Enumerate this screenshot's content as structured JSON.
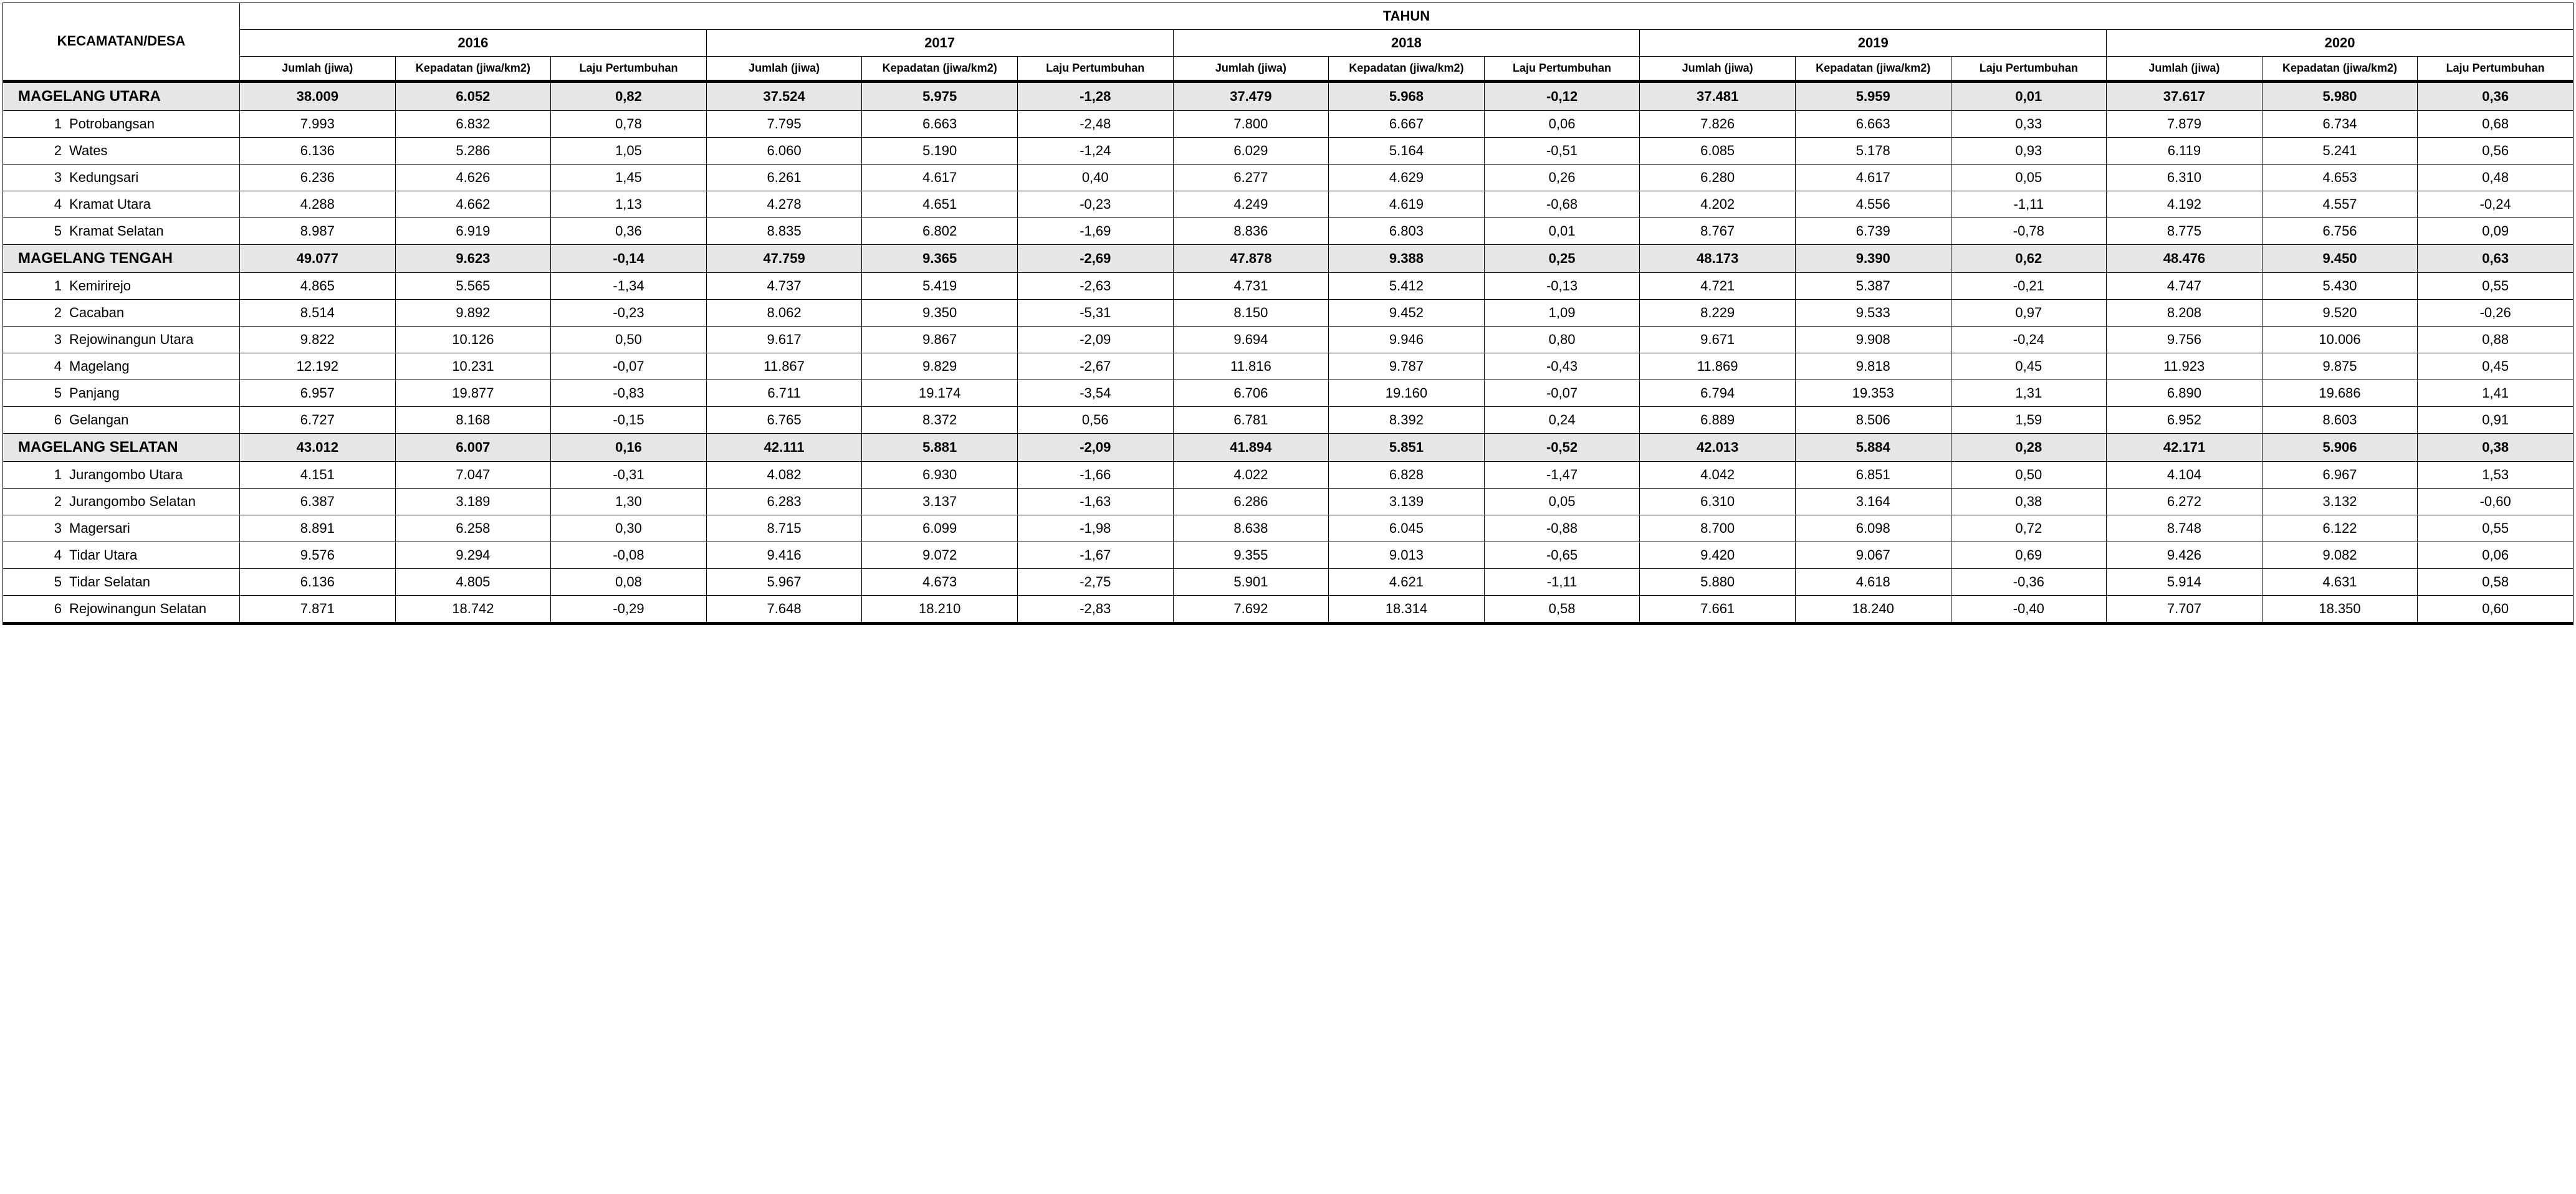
{
  "header": {
    "region_label": "KECAMATAN/DESA",
    "year_label": "TAHUN",
    "years": [
      "2016",
      "2017",
      "2018",
      "2019",
      "2020"
    ],
    "sub_columns": [
      {
        "k": "jumlah",
        "label": "Jumlah (jiwa)"
      },
      {
        "k": "kepadatan",
        "label": "Kepadatan (jiwa/km2)"
      },
      {
        "k": "laju",
        "label": "Laju Pertumbuhan"
      }
    ]
  },
  "groups": [
    {
      "name": "MAGELANG UTARA",
      "summary": {
        "2016": {
          "jumlah": "38.009",
          "kepadatan": "6.052",
          "laju": "0,82"
        },
        "2017": {
          "jumlah": "37.524",
          "kepadatan": "5.975",
          "laju": "-1,28"
        },
        "2018": {
          "jumlah": "37.479",
          "kepadatan": "5.968",
          "laju": "-0,12"
        },
        "2019": {
          "jumlah": "37.481",
          "kepadatan": "5.959",
          "laju": "0,01"
        },
        "2020": {
          "jumlah": "37.617",
          "kepadatan": "5.980",
          "laju": "0,36"
        }
      },
      "rows": [
        {
          "idx": "1",
          "name": "Potrobangsan",
          "2016": {
            "jumlah": "7.993",
            "kepadatan": "6.832",
            "laju": "0,78"
          },
          "2017": {
            "jumlah": "7.795",
            "kepadatan": "6.663",
            "laju": "-2,48"
          },
          "2018": {
            "jumlah": "7.800",
            "kepadatan": "6.667",
            "laju": "0,06"
          },
          "2019": {
            "jumlah": "7.826",
            "kepadatan": "6.663",
            "laju": "0,33"
          },
          "2020": {
            "jumlah": "7.879",
            "kepadatan": "6.734",
            "laju": "0,68"
          }
        },
        {
          "idx": "2",
          "name": "Wates",
          "2016": {
            "jumlah": "6.136",
            "kepadatan": "5.286",
            "laju": "1,05"
          },
          "2017": {
            "jumlah": "6.060",
            "kepadatan": "5.190",
            "laju": "-1,24"
          },
          "2018": {
            "jumlah": "6.029",
            "kepadatan": "5.164",
            "laju": "-0,51"
          },
          "2019": {
            "jumlah": "6.085",
            "kepadatan": "5.178",
            "laju": "0,93"
          },
          "2020": {
            "jumlah": "6.119",
            "kepadatan": "5.241",
            "laju": "0,56"
          }
        },
        {
          "idx": "3",
          "name": "Kedungsari",
          "2016": {
            "jumlah": "6.236",
            "kepadatan": "4.626",
            "laju": "1,45"
          },
          "2017": {
            "jumlah": "6.261",
            "kepadatan": "4.617",
            "laju": "0,40"
          },
          "2018": {
            "jumlah": "6.277",
            "kepadatan": "4.629",
            "laju": "0,26"
          },
          "2019": {
            "jumlah": "6.280",
            "kepadatan": "4.617",
            "laju": "0,05"
          },
          "2020": {
            "jumlah": "6.310",
            "kepadatan": "4.653",
            "laju": "0,48"
          }
        },
        {
          "idx": "4",
          "name": "Kramat Utara",
          "2016": {
            "jumlah": "4.288",
            "kepadatan": "4.662",
            "laju": "1,13"
          },
          "2017": {
            "jumlah": "4.278",
            "kepadatan": "4.651",
            "laju": "-0,23"
          },
          "2018": {
            "jumlah": "4.249",
            "kepadatan": "4.619",
            "laju": "-0,68"
          },
          "2019": {
            "jumlah": "4.202",
            "kepadatan": "4.556",
            "laju": "-1,11"
          },
          "2020": {
            "jumlah": "4.192",
            "kepadatan": "4.557",
            "laju": "-0,24"
          }
        },
        {
          "idx": "5",
          "name": "Kramat Selatan",
          "2016": {
            "jumlah": "8.987",
            "kepadatan": "6.919",
            "laju": "0,36"
          },
          "2017": {
            "jumlah": "8.835",
            "kepadatan": "6.802",
            "laju": "-1,69"
          },
          "2018": {
            "jumlah": "8.836",
            "kepadatan": "6.803",
            "laju": "0,01"
          },
          "2019": {
            "jumlah": "8.767",
            "kepadatan": "6.739",
            "laju": "-0,78"
          },
          "2020": {
            "jumlah": "8.775",
            "kepadatan": "6.756",
            "laju": "0,09"
          }
        }
      ]
    },
    {
      "name": "MAGELANG TENGAH",
      "summary": {
        "2016": {
          "jumlah": "49.077",
          "kepadatan": "9.623",
          "laju": "-0,14"
        },
        "2017": {
          "jumlah": "47.759",
          "kepadatan": "9.365",
          "laju": "-2,69"
        },
        "2018": {
          "jumlah": "47.878",
          "kepadatan": "9.388",
          "laju": "0,25"
        },
        "2019": {
          "jumlah": "48.173",
          "kepadatan": "9.390",
          "laju": "0,62"
        },
        "2020": {
          "jumlah": "48.476",
          "kepadatan": "9.450",
          "laju": "0,63"
        }
      },
      "rows": [
        {
          "idx": "1",
          "name": "Kemirirejo",
          "2016": {
            "jumlah": "4.865",
            "kepadatan": "5.565",
            "laju": "-1,34"
          },
          "2017": {
            "jumlah": "4.737",
            "kepadatan": "5.419",
            "laju": "-2,63"
          },
          "2018": {
            "jumlah": "4.731",
            "kepadatan": "5.412",
            "laju": "-0,13"
          },
          "2019": {
            "jumlah": "4.721",
            "kepadatan": "5.387",
            "laju": "-0,21"
          },
          "2020": {
            "jumlah": "4.747",
            "kepadatan": "5.430",
            "laju": "0,55"
          }
        },
        {
          "idx": "2",
          "name": "Cacaban",
          "2016": {
            "jumlah": "8.514",
            "kepadatan": "9.892",
            "laju": "-0,23"
          },
          "2017": {
            "jumlah": "8.062",
            "kepadatan": "9.350",
            "laju": "-5,31"
          },
          "2018": {
            "jumlah": "8.150",
            "kepadatan": "9.452",
            "laju": "1,09"
          },
          "2019": {
            "jumlah": "8.229",
            "kepadatan": "9.533",
            "laju": "0,97"
          },
          "2020": {
            "jumlah": "8.208",
            "kepadatan": "9.520",
            "laju": "-0,26"
          }
        },
        {
          "idx": "3",
          "name": "Rejowinangun Utara",
          "2016": {
            "jumlah": "9.822",
            "kepadatan": "10.126",
            "laju": "0,50"
          },
          "2017": {
            "jumlah": "9.617",
            "kepadatan": "9.867",
            "laju": "-2,09"
          },
          "2018": {
            "jumlah": "9.694",
            "kepadatan": "9.946",
            "laju": "0,80"
          },
          "2019": {
            "jumlah": "9.671",
            "kepadatan": "9.908",
            "laju": "-0,24"
          },
          "2020": {
            "jumlah": "9.756",
            "kepadatan": "10.006",
            "laju": "0,88"
          }
        },
        {
          "idx": "4",
          "name": "Magelang",
          "2016": {
            "jumlah": "12.192",
            "kepadatan": "10.231",
            "laju": "-0,07"
          },
          "2017": {
            "jumlah": "11.867",
            "kepadatan": "9.829",
            "laju": "-2,67"
          },
          "2018": {
            "jumlah": "11.816",
            "kepadatan": "9.787",
            "laju": "-0,43"
          },
          "2019": {
            "jumlah": "11.869",
            "kepadatan": "9.818",
            "laju": "0,45"
          },
          "2020": {
            "jumlah": "11.923",
            "kepadatan": "9.875",
            "laju": "0,45"
          }
        },
        {
          "idx": "5",
          "name": "Panjang",
          "2016": {
            "jumlah": "6.957",
            "kepadatan": "19.877",
            "laju": "-0,83"
          },
          "2017": {
            "jumlah": "6.711",
            "kepadatan": "19.174",
            "laju": "-3,54"
          },
          "2018": {
            "jumlah": "6.706",
            "kepadatan": "19.160",
            "laju": "-0,07"
          },
          "2019": {
            "jumlah": "6.794",
            "kepadatan": "19.353",
            "laju": "1,31"
          },
          "2020": {
            "jumlah": "6.890",
            "kepadatan": "19.686",
            "laju": "1,41"
          }
        },
        {
          "idx": "6",
          "name": "Gelangan",
          "2016": {
            "jumlah": "6.727",
            "kepadatan": "8.168",
            "laju": "-0,15"
          },
          "2017": {
            "jumlah": "6.765",
            "kepadatan": "8.372",
            "laju": "0,56"
          },
          "2018": {
            "jumlah": "6.781",
            "kepadatan": "8.392",
            "laju": "0,24"
          },
          "2019": {
            "jumlah": "6.889",
            "kepadatan": "8.506",
            "laju": "1,59"
          },
          "2020": {
            "jumlah": "6.952",
            "kepadatan": "8.603",
            "laju": "0,91"
          }
        }
      ]
    },
    {
      "name": "MAGELANG SELATAN",
      "summary": {
        "2016": {
          "jumlah": "43.012",
          "kepadatan": "6.007",
          "laju": "0,16"
        },
        "2017": {
          "jumlah": "42.111",
          "kepadatan": "5.881",
          "laju": "-2,09"
        },
        "2018": {
          "jumlah": "41.894",
          "kepadatan": "5.851",
          "laju": "-0,52"
        },
        "2019": {
          "jumlah": "42.013",
          "kepadatan": "5.884",
          "laju": "0,28"
        },
        "2020": {
          "jumlah": "42.171",
          "kepadatan": "5.906",
          "laju": "0,38"
        }
      },
      "rows": [
        {
          "idx": "1",
          "name": "Jurangombo Utara",
          "2016": {
            "jumlah": "4.151",
            "kepadatan": "7.047",
            "laju": "-0,31"
          },
          "2017": {
            "jumlah": "4.082",
            "kepadatan": "6.930",
            "laju": "-1,66"
          },
          "2018": {
            "jumlah": "4.022",
            "kepadatan": "6.828",
            "laju": "-1,47"
          },
          "2019": {
            "jumlah": "4.042",
            "kepadatan": "6.851",
            "laju": "0,50"
          },
          "2020": {
            "jumlah": "4.104",
            "kepadatan": "6.967",
            "laju": "1,53"
          }
        },
        {
          "idx": "2",
          "name": "Jurangombo Selatan",
          "2016": {
            "jumlah": "6.387",
            "kepadatan": "3.189",
            "laju": "1,30"
          },
          "2017": {
            "jumlah": "6.283",
            "kepadatan": "3.137",
            "laju": "-1,63"
          },
          "2018": {
            "jumlah": "6.286",
            "kepadatan": "3.139",
            "laju": "0,05"
          },
          "2019": {
            "jumlah": "6.310",
            "kepadatan": "3.164",
            "laju": "0,38"
          },
          "2020": {
            "jumlah": "6.272",
            "kepadatan": "3.132",
            "laju": "-0,60"
          }
        },
        {
          "idx": "3",
          "name": "Magersari",
          "2016": {
            "jumlah": "8.891",
            "kepadatan": "6.258",
            "laju": "0,30"
          },
          "2017": {
            "jumlah": "8.715",
            "kepadatan": "6.099",
            "laju": "-1,98"
          },
          "2018": {
            "jumlah": "8.638",
            "kepadatan": "6.045",
            "laju": "-0,88"
          },
          "2019": {
            "jumlah": "8.700",
            "kepadatan": "6.098",
            "laju": "0,72"
          },
          "2020": {
            "jumlah": "8.748",
            "kepadatan": "6.122",
            "laju": "0,55"
          }
        },
        {
          "idx": "4",
          "name": "Tidar Utara",
          "2016": {
            "jumlah": "9.576",
            "kepadatan": "9.294",
            "laju": "-0,08"
          },
          "2017": {
            "jumlah": "9.416",
            "kepadatan": "9.072",
            "laju": "-1,67"
          },
          "2018": {
            "jumlah": "9.355",
            "kepadatan": "9.013",
            "laju": "-0,65"
          },
          "2019": {
            "jumlah": "9.420",
            "kepadatan": "9.067",
            "laju": "0,69"
          },
          "2020": {
            "jumlah": "9.426",
            "kepadatan": "9.082",
            "laju": "0,06"
          }
        },
        {
          "idx": "5",
          "name": "Tidar Selatan",
          "2016": {
            "jumlah": "6.136",
            "kepadatan": "4.805",
            "laju": "0,08"
          },
          "2017": {
            "jumlah": "5.967",
            "kepadatan": "4.673",
            "laju": "-2,75"
          },
          "2018": {
            "jumlah": "5.901",
            "kepadatan": "4.621",
            "laju": "-1,11"
          },
          "2019": {
            "jumlah": "5.880",
            "kepadatan": "4.618",
            "laju": "-0,36"
          },
          "2020": {
            "jumlah": "5.914",
            "kepadatan": "4.631",
            "laju": "0,58"
          }
        },
        {
          "idx": "6",
          "name": "Rejowinangun Selatan",
          "2016": {
            "jumlah": "7.871",
            "kepadatan": "18.742",
            "laju": "-0,29"
          },
          "2017": {
            "jumlah": "7.648",
            "kepadatan": "18.210",
            "laju": "-2,83"
          },
          "2018": {
            "jumlah": "7.692",
            "kepadatan": "18.314",
            "laju": "0,58"
          },
          "2019": {
            "jumlah": "7.661",
            "kepadatan": "18.240",
            "laju": "-0,40"
          },
          "2020": {
            "jumlah": "7.707",
            "kepadatan": "18.350",
            "laju": "0,60"
          }
        }
      ]
    }
  ]
}
